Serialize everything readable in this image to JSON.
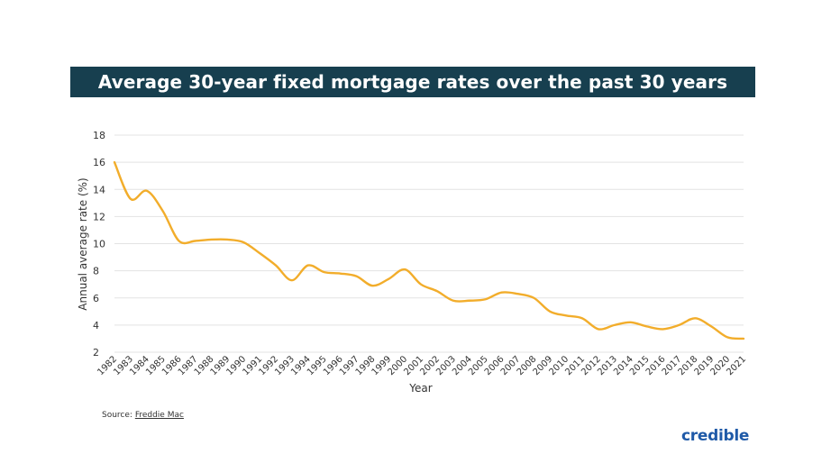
{
  "chart_data": {
    "type": "line",
    "title": "Average 30-year fixed mortgage rates over the past 30 years",
    "xlabel": "Year",
    "ylabel": "Annual average rate (%)",
    "ylim": [
      2,
      18
    ],
    "yticks": [
      2,
      4,
      6,
      8,
      10,
      12,
      14,
      16,
      18
    ],
    "grid": true,
    "line_color": "#f2ad2b",
    "categories": [
      "1982",
      "1983",
      "1984",
      "1985",
      "1986",
      "1987",
      "1988",
      "1989",
      "1990",
      "1991",
      "1992",
      "1993",
      "1994",
      "1995",
      "1996",
      "1997",
      "1998",
      "1999",
      "2000",
      "2001",
      "2002",
      "2003",
      "2004",
      "2005",
      "2006",
      "2007",
      "2008",
      "2009",
      "2010",
      "2011",
      "2012",
      "2013",
      "2014",
      "2015",
      "2016",
      "2017",
      "2018",
      "2019",
      "2020",
      "2021"
    ],
    "series": [
      {
        "values": [
          16.0,
          13.3,
          13.9,
          12.4,
          10.2,
          10.2,
          10.3,
          10.3,
          10.1,
          9.3,
          8.4,
          7.3,
          8.4,
          7.9,
          7.8,
          7.6,
          6.9,
          7.4,
          8.1,
          7.0,
          6.5,
          5.8,
          5.8,
          5.9,
          6.4,
          6.3,
          6.0,
          5.0,
          4.7,
          4.5,
          3.7,
          4.0,
          4.2,
          3.9,
          3.7,
          4.0,
          4.5,
          3.9,
          3.1,
          3.0
        ]
      }
    ]
  },
  "footer": {
    "source_prefix": "Source: ",
    "source_name": "Freddie Mac",
    "brand": "credible"
  }
}
